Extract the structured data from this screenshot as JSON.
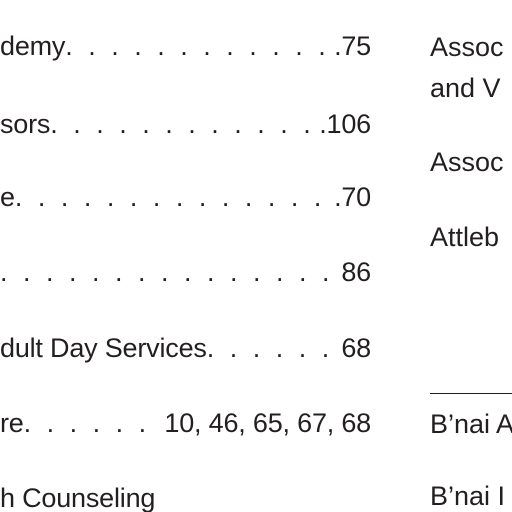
{
  "left_entries": [
    {
      "text": "demy",
      "pages": ".75"
    },
    {
      "text": "sors",
      "pages": ".106"
    },
    {
      "text": "e",
      "pages": ".70"
    },
    {
      "text": "",
      "pages": "86"
    },
    {
      "text": "dult Day Services",
      "pages": "68"
    },
    {
      "text": "re",
      "pages": "10, 46, 65, 67, 68"
    },
    {
      "text": "h Counseling",
      "pages": ""
    }
  ],
  "right_entries": [
    "Assoc",
    "and V",
    "Assoc",
    "Attleb",
    "B’nai A",
    "B’nai I"
  ],
  "dots": ". . . . . . . . . . . . . . . . . . . . . . . . . . . . . . . . . . . . . . . ."
}
